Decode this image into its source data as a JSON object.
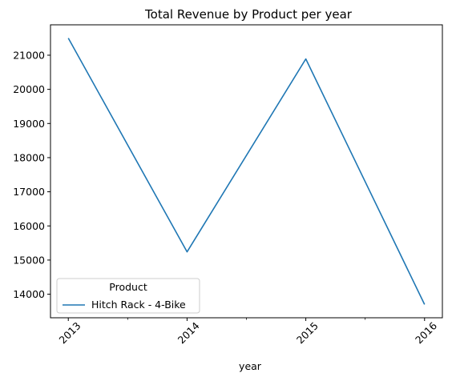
{
  "chart_data": {
    "type": "line",
    "title": "Total Revenue by Product per year",
    "xlabel": "year",
    "ylabel": "",
    "x": [
      2013,
      2014,
      2015,
      2016
    ],
    "x_tick_labels": [
      "2013",
      "2014",
      "2015",
      "2016"
    ],
    "series": [
      {
        "name": "Hitch Rack - 4-Bike",
        "values": [
          21500,
          15240,
          20890,
          13700
        ],
        "color": "#1f77b4"
      }
    ],
    "y_ticks": [
      14000,
      15000,
      16000,
      17000,
      18000,
      19000,
      20000,
      21000
    ],
    "ylim": [
      13310,
      21890
    ],
    "xlim": [
      2012.85,
      2016.15
    ],
    "grid": false,
    "legend": {
      "title": "Product",
      "placement": "lower-left"
    }
  }
}
